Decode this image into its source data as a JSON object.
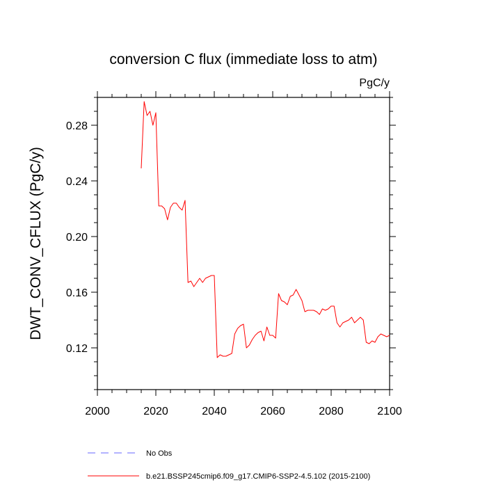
{
  "chart_data": {
    "type": "line",
    "title": "conversion C flux (immediate loss to atm)",
    "units_label": "PgC/y",
    "ylabel": "DWT_CONV_CFLUX  (PgC/y)",
    "xlabel": "",
    "xlim": [
      2000,
      2100
    ],
    "ylim": [
      0.09,
      0.3
    ],
    "x_major_ticks": [
      2000,
      2020,
      2040,
      2060,
      2080,
      2100
    ],
    "x_tick_labels": [
      "2000",
      "2020",
      "2040",
      "2060",
      "2080",
      "2100"
    ],
    "y_major_ticks": [
      0.12,
      0.16,
      0.2,
      0.24,
      0.28
    ],
    "y_tick_labels": [
      "0.12",
      "0.16",
      "0.20",
      "0.24",
      "0.28"
    ],
    "grid": false,
    "colors": {
      "model": "#ff0000",
      "obs": "#6666ff"
    },
    "series": [
      {
        "name": "b.e21.BSSP245cmip6.f09_g17.CMIP6-SSP2-4.5.102 (2015-2100)",
        "style": "solid",
        "x": [
          2015,
          2016,
          2017,
          2018,
          2019,
          2020,
          2021,
          2022,
          2023,
          2024,
          2025,
          2026,
          2027,
          2028,
          2029,
          2030,
          2031,
          2032,
          2033,
          2034,
          2035,
          2036,
          2037,
          2038,
          2039,
          2040,
          2041,
          2042,
          2043,
          2044,
          2045,
          2046,
          2047,
          2048,
          2049,
          2050,
          2051,
          2052,
          2053,
          2054,
          2055,
          2056,
          2057,
          2058,
          2059,
          2060,
          2061,
          2062,
          2063,
          2064,
          2065,
          2066,
          2067,
          2068,
          2069,
          2070,
          2071,
          2072,
          2073,
          2074,
          2075,
          2076,
          2077,
          2078,
          2079,
          2080,
          2081,
          2082,
          2083,
          2084,
          2085,
          2086,
          2087,
          2088,
          2089,
          2090,
          2091,
          2092,
          2093,
          2094,
          2095,
          2096,
          2097,
          2098,
          2099,
          2100
        ],
        "y": [
          0.249,
          0.297,
          0.287,
          0.29,
          0.28,
          0.289,
          0.222,
          0.222,
          0.22,
          0.212,
          0.221,
          0.224,
          0.224,
          0.221,
          0.219,
          0.226,
          0.167,
          0.168,
          0.164,
          0.167,
          0.17,
          0.167,
          0.17,
          0.171,
          0.172,
          0.172,
          0.113,
          0.115,
          0.114,
          0.114,
          0.115,
          0.116,
          0.13,
          0.134,
          0.136,
          0.137,
          0.12,
          0.122,
          0.126,
          0.129,
          0.131,
          0.132,
          0.125,
          0.135,
          0.129,
          0.129,
          0.127,
          0.159,
          0.154,
          0.153,
          0.151,
          0.157,
          0.158,
          0.162,
          0.158,
          0.154,
          0.146,
          0.147,
          0.147,
          0.147,
          0.146,
          0.144,
          0.148,
          0.147,
          0.148,
          0.15,
          0.15,
          0.138,
          0.135,
          0.138,
          0.139,
          0.14,
          0.142,
          0.138,
          0.14,
          0.142,
          0.14,
          0.124,
          0.123,
          0.125,
          0.124,
          0.128,
          0.13,
          0.129,
          0.128,
          0.129
        ]
      }
    ],
    "legend": [
      {
        "label": "No Obs",
        "style": "dashed",
        "color": "#6666ff"
      },
      {
        "label": "b.e21.BSSP245cmip6.f09_g17.CMIP6-SSP2-4.5.102 (2015-2100)",
        "style": "solid",
        "color": "#ff0000"
      }
    ]
  }
}
